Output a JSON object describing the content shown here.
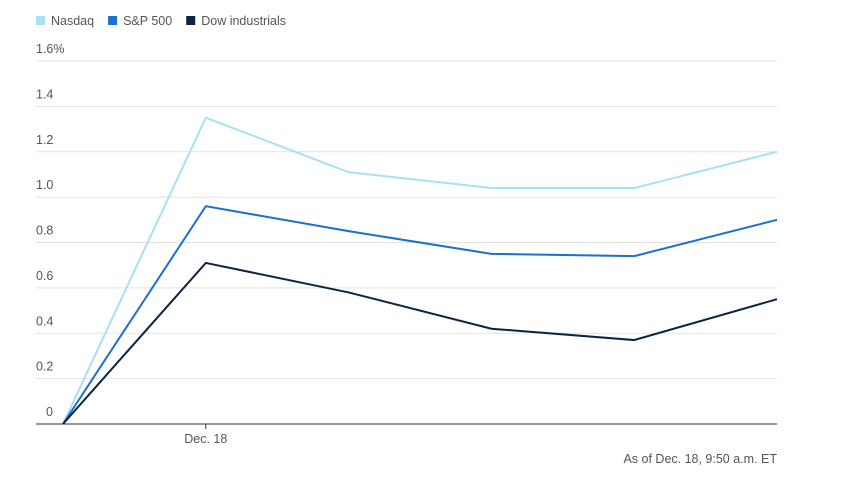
{
  "chart_data": {
    "type": "line",
    "categories": [
      null,
      "Dec. 18",
      null,
      null,
      null,
      null
    ],
    "series": [
      {
        "name": "Nasdaq",
        "color": "#a8e0f4",
        "values": [
          0,
          1.35,
          1.11,
          1.04,
          1.04,
          1.2
        ]
      },
      {
        "name": "S&P 500",
        "color": "#1b6fd0",
        "values": [
          0,
          0.96,
          0.85,
          0.75,
          0.74,
          0.9
        ]
      },
      {
        "name": "Dow industrials",
        "color": "#0b2444",
        "values": [
          0,
          0.71,
          0.58,
          0.42,
          0.37,
          0.55
        ]
      }
    ],
    "ylim": [
      0,
      1.6
    ],
    "yticks": [
      0,
      0.2,
      0.4,
      0.6,
      0.8,
      {
        "value": 1,
        "label": "1.0"
      },
      1.2,
      1.4,
      {
        "value": 1.6,
        "label": "1.6%"
      }
    ],
    "grid": true,
    "legend": "top-left",
    "note": "As of Dec. 18, 9:50 a.m. ET"
  }
}
